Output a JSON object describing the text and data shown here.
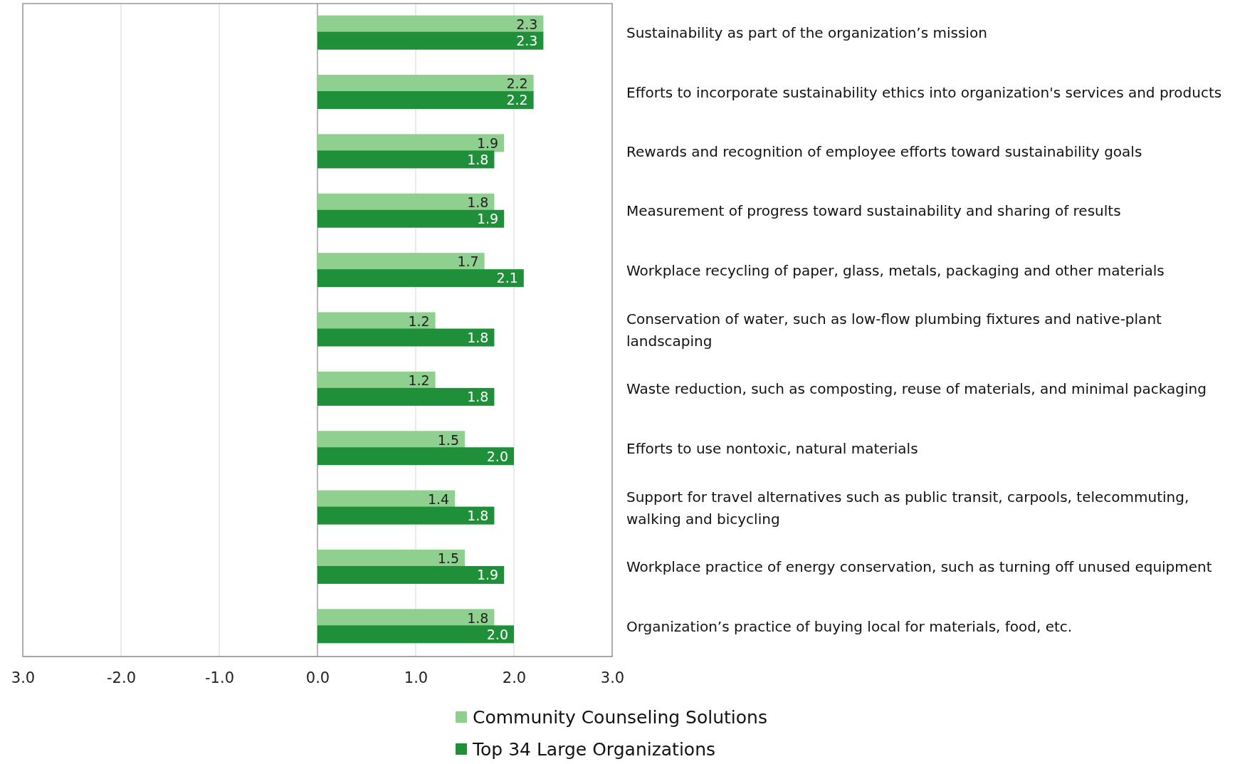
{
  "chart_data": {
    "type": "bar",
    "orientation": "horizontal",
    "categories": [
      "Sustainability as part of the organization’s mission",
      "Efforts to incorporate sustainability ethics into organization's services and products",
      "Rewards and recognition of employee efforts toward sustainability goals",
      "Measurement of progress toward sustainability and sharing of results",
      "Workplace recycling of paper, glass, metals, packaging and other materials",
      "Conservation of water, such as low-flow plumbing fixtures and native-plant landscaping",
      "Waste reduction, such as composting, reuse of materials, and minimal packaging",
      "Efforts to use nontoxic, natural materials",
      "Support for travel alternatives such as public transit, carpools, telecommuting, walking and bicycling",
      "Workplace practice of energy conservation, such as turning off unused equipment",
      "Organization’s practice of buying local for materials, food, etc."
    ],
    "series": [
      {
        "name": "Community Counseling Solutions",
        "color": "#8fcf8f",
        "values": [
          2.3,
          2.2,
          1.9,
          1.8,
          1.7,
          1.2,
          1.2,
          1.5,
          1.4,
          1.5,
          1.8
        ],
        "value_labels": [
          "2.3",
          "2.2",
          "1.9",
          "1.8",
          "1.7",
          "1.2",
          "1.2",
          "1.5",
          "1.4",
          "1.5",
          "1.8"
        ]
      },
      {
        "name": "Top 34 Large Organizations",
        "color": "#1f8f3a",
        "values": [
          2.3,
          2.2,
          1.8,
          1.9,
          2.1,
          1.8,
          1.8,
          2.0,
          1.8,
          1.9,
          2.0
        ],
        "value_labels": [
          "2.3",
          "2.2",
          "1.8",
          "1.9",
          "2.1",
          "1.8",
          "1.8",
          "2.0",
          "1.8",
          "1.9",
          "2.0"
        ]
      }
    ],
    "xlim": [
      -3,
      3
    ],
    "xticks": [
      {
        "value": -3,
        "label": "3.0"
      },
      {
        "value": -2,
        "label": "-2.0"
      },
      {
        "value": -1,
        "label": "-1.0"
      },
      {
        "value": 0,
        "label": "0.0"
      },
      {
        "value": 1,
        "label": "1.0"
      },
      {
        "value": 2,
        "label": "2.0"
      },
      {
        "value": 3,
        "label": "3.0"
      }
    ],
    "grid": "x",
    "legend": "bottom"
  }
}
